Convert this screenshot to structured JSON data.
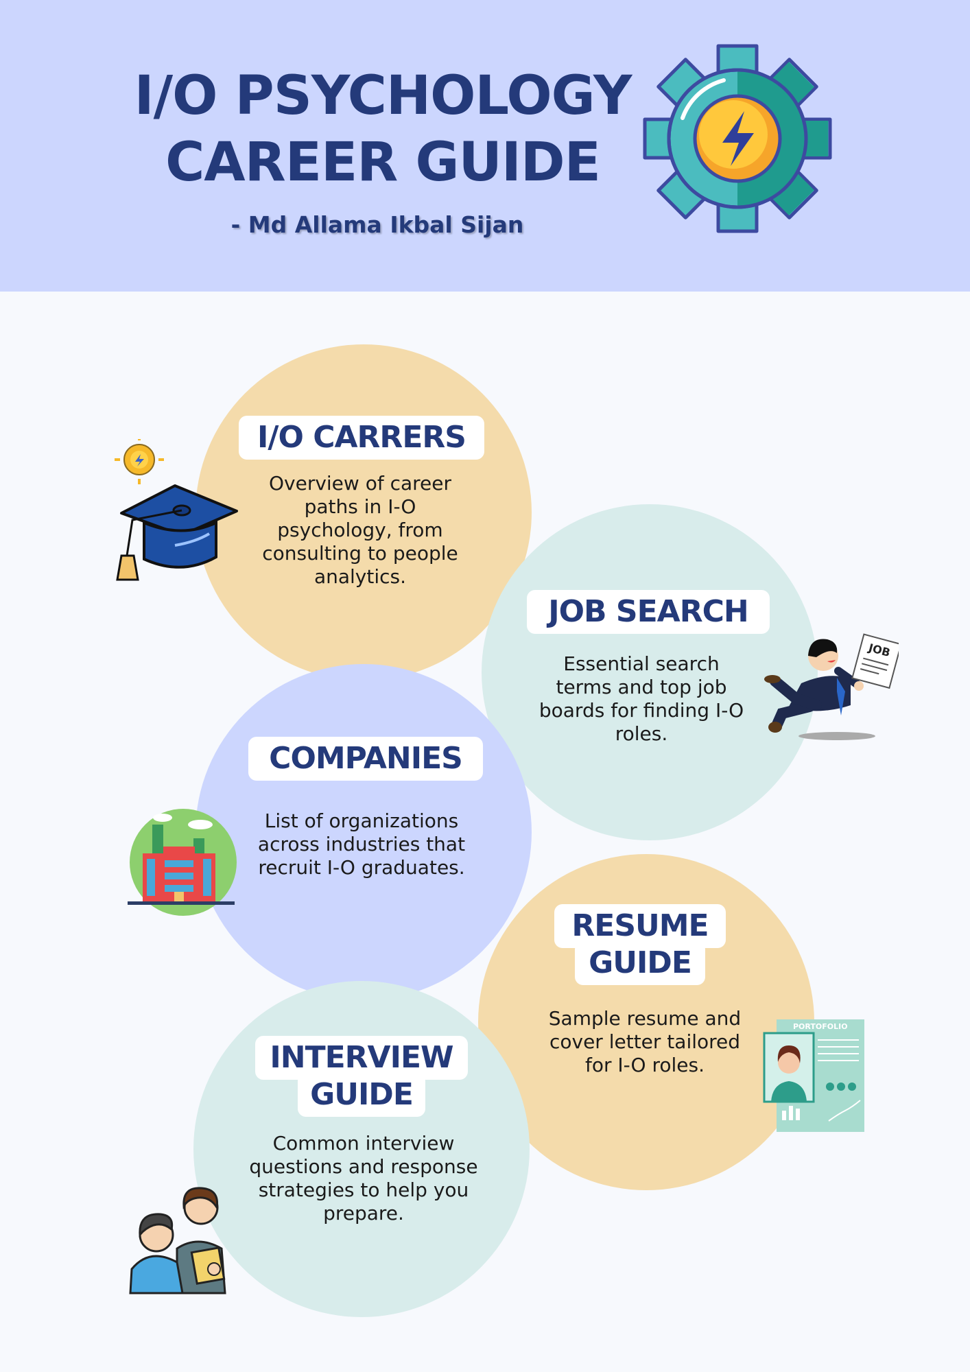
{
  "header": {
    "title_line1": "I/O PSYCHOLOGY",
    "title_line2": "CAREER GUIDE",
    "author": "- Md Allama Ikbal Sijan",
    "icon": "gear-lightning-icon"
  },
  "sections": {
    "careers": {
      "title": "I/O CARRERS",
      "description": "Overview of career paths in I-O psychology, from consulting to people analytics.",
      "icon": "graduation-cap-icon"
    },
    "job_search": {
      "title": "JOB SEARCH",
      "description": "Essential search terms and top job boards for finding I-O roles.",
      "icon": "job-seeker-icon"
    },
    "companies": {
      "title": "COMPANIES",
      "description": "List of organizations across industries that recruit I-O graduates.",
      "icon": "office-building-icon"
    },
    "resume": {
      "title_line1": "RESUME",
      "title_line2": "GUIDE",
      "description": "Sample resume and cover letter tailored for I-O roles.",
      "icon": "portfolio-document-icon",
      "portfolio_label": "PORTOFOLIO"
    },
    "interview": {
      "title_line1": "INTERVIEW",
      "title_line2": "GUIDE",
      "description": "Common interview questions and response strategies to help you prepare.",
      "icon": "interview-people-icon"
    }
  },
  "colors": {
    "header_bg": "#ccd6fe",
    "navy": "#243a7a",
    "peach": "#f4dbab",
    "mint": "#d8eceb",
    "lavender": "#ccd6fe"
  }
}
